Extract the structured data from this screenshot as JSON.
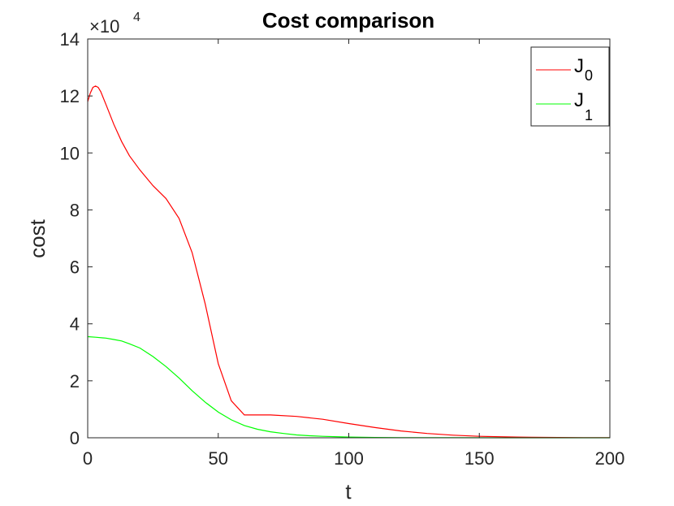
{
  "chart_data": {
    "type": "line",
    "title": "Cost comparison",
    "xlabel": "t",
    "ylabel": "cost",
    "xlim": [
      0,
      200
    ],
    "ylim": [
      0,
      140000
    ],
    "y_exponent_label": "×10",
    "y_exponent_power": "4",
    "x_ticks": [
      0,
      50,
      100,
      150,
      200
    ],
    "y_ticks": [
      0,
      20000,
      40000,
      60000,
      80000,
      100000,
      120000,
      140000
    ],
    "y_tick_labels": [
      "0",
      "2",
      "4",
      "6",
      "8",
      "10",
      "12",
      "14"
    ],
    "x_tick_labels": [
      "0",
      "50",
      "100",
      "150",
      "200"
    ],
    "grid": false,
    "legend_position": "top-right",
    "series": [
      {
        "name": "J0",
        "legend_base": "J",
        "legend_sub": "0",
        "color": "#ff0000",
        "x": [
          0,
          1,
          2,
          3,
          4,
          5,
          7,
          10,
          13,
          16,
          20,
          25,
          30,
          35,
          40,
          45,
          50,
          55,
          60,
          65,
          70,
          80,
          90,
          100,
          110,
          120,
          130,
          140,
          150,
          160,
          170,
          180,
          190,
          200
        ],
        "y": [
          118000,
          121000,
          123000,
          123500,
          123000,
          121500,
          117000,
          110000,
          104000,
          99000,
          94000,
          88500,
          84000,
          77000,
          65000,
          47000,
          26000,
          13000,
          8000,
          8000,
          8000,
          7500,
          6500,
          5000,
          3600,
          2400,
          1500,
          900,
          500,
          300,
          180,
          100,
          50,
          20
        ]
      },
      {
        "name": "J1",
        "legend_base": "J",
        "legend_sub": "1",
        "color": "#00ff00",
        "x": [
          0,
          3,
          7,
          10,
          13,
          16,
          20,
          25,
          30,
          35,
          40,
          45,
          50,
          55,
          60,
          65,
          70,
          75,
          80,
          85,
          90,
          100,
          110,
          120,
          140,
          160,
          180,
          200
        ],
        "y": [
          35500,
          35300,
          35000,
          34500,
          34000,
          33000,
          31500,
          28500,
          25000,
          21000,
          16500,
          12500,
          9000,
          6300,
          4300,
          3000,
          2100,
          1500,
          1000,
          700,
          500,
          250,
          120,
          60,
          20,
          8,
          3,
          1
        ]
      }
    ]
  }
}
